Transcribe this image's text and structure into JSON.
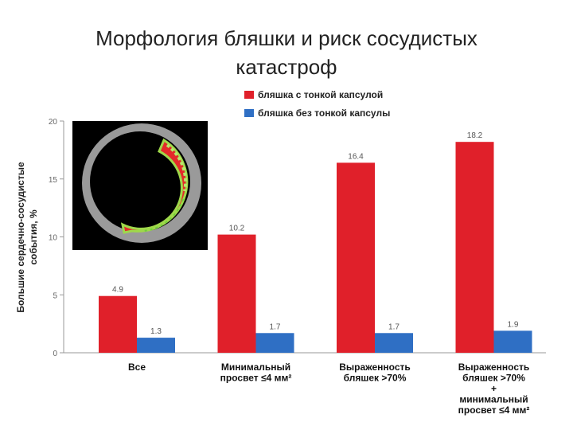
{
  "slide": {
    "title_line1": "Морфология бляшки и риск сосудистых",
    "title_line2": "катастроф"
  },
  "chart_data": {
    "type": "bar",
    "ylabel_line1": "Большие сердечно-сосудистые",
    "ylabel_line2": "события, %",
    "ylim": [
      0,
      20
    ],
    "yticks": [
      0,
      5,
      10,
      15,
      20
    ],
    "categories": [
      [
        "Все"
      ],
      [
        "Минимальный",
        "просвет ≤4 мм²"
      ],
      [
        "Выраженность",
        "бляшек >70%"
      ],
      [
        "Выраженность",
        "бляшек >70%",
        "+",
        "минимальный",
        "просвет ≤4 мм²"
      ]
    ],
    "series": [
      {
        "name": "бляшка с тонкой капсулой",
        "color": "#e0202a",
        "values": [
          4.9,
          10.2,
          16.4,
          18.2
        ],
        "labels": [
          "4.9",
          "10.2",
          "16.4",
          "18.2"
        ]
      },
      {
        "name": "бляшка без тонкой капсулы",
        "color": "#2f6fc4",
        "values": [
          1.3,
          1.7,
          1.7,
          1.9
        ],
        "labels": [
          "1.3",
          "1.7",
          "1.7",
          "1.9"
        ]
      }
    ],
    "legend_position": "top-right",
    "grid": false
  },
  "inset_image": {
    "icon": "plaque-cross-section-image"
  }
}
